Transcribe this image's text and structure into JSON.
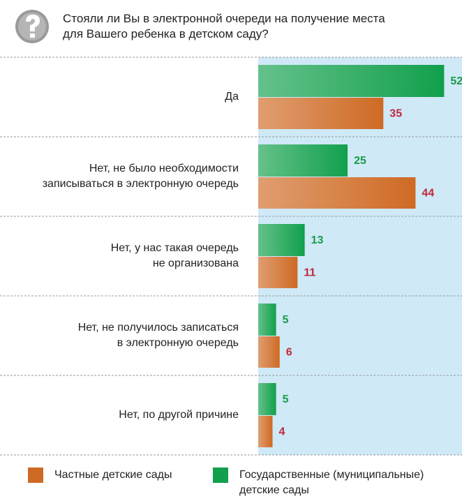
{
  "chart_data": {
    "type": "hbar-grouped",
    "title": "Стояли ли Вы в электронной очереди на получение места\nдля Вашего ребенка в детском саду?",
    "categories": [
      "Да",
      "Нет, не было необходимости\nзаписываться в электронную очередь",
      "Нет, у нас такая очередь\nне организована",
      "Нет, не получилось записаться\nв электронную очередь",
      "Нет, по другой причине"
    ],
    "series": [
      {
        "name": "Частные детские сады",
        "color": "#cf6a24",
        "label_color": "#c0283a",
        "values": [
          35,
          44,
          11,
          6,
          4
        ]
      },
      {
        "name": "Государственные (муниципальные)\nдетские сады",
        "color": "#12a04c",
        "label_color": "#1a9a4a",
        "values": [
          52,
          25,
          13,
          5,
          5
        ]
      }
    ],
    "xlim": [
      0,
      57
    ]
  }
}
